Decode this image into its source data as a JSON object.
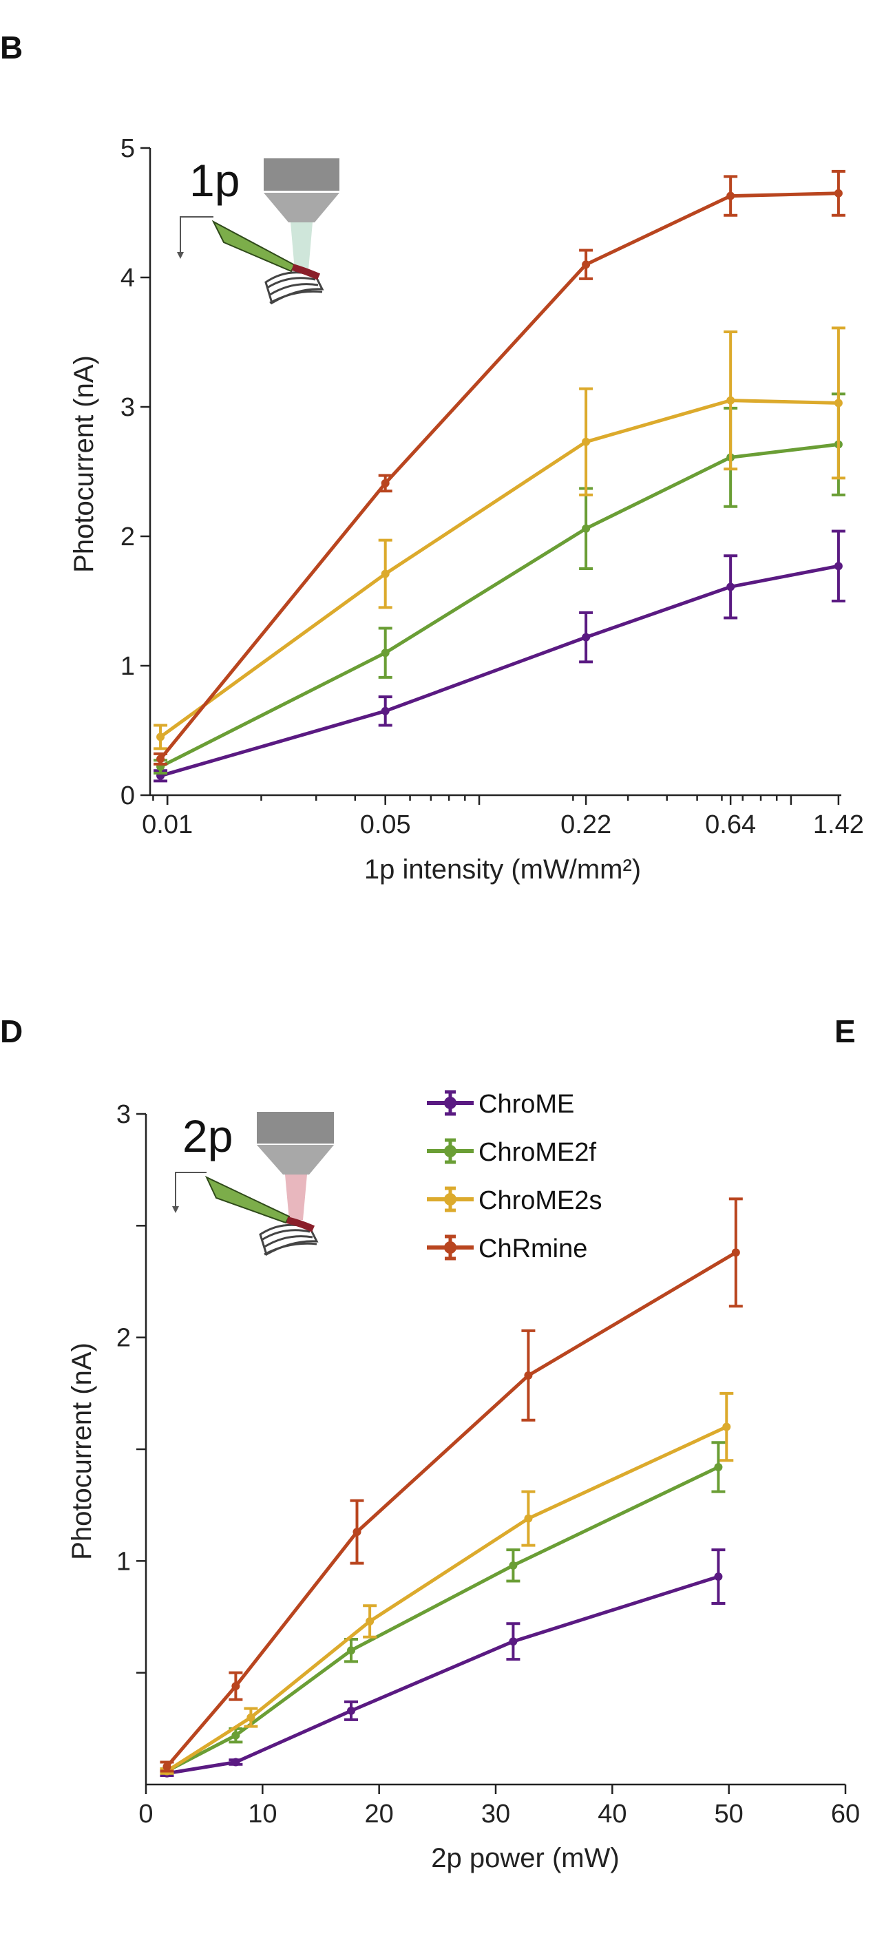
{
  "panels": {
    "b": {
      "letter": "B"
    },
    "d": {
      "letter": "D"
    },
    "e": {
      "letter": "E"
    }
  },
  "colors": {
    "ChroME": "#5a1a82",
    "ChroME2f": "#6a9e35",
    "ChroME2s": "#dcaa2c",
    "ChRmine": "#b9451f"
  },
  "chart_data": [
    {
      "type": "line",
      "panel": "B",
      "inset_label": "1p",
      "xlabel": "1p intensity (mW/mm²)",
      "ylabel": "Photocurrent (nA)",
      "xscale": "log",
      "xlim": [
        0.0088,
        1.45
      ],
      "ylim": [
        0,
        5
      ],
      "xticks": [
        0.01,
        0.05,
        0.22,
        0.64,
        1.42
      ],
      "xtick_labels": [
        "0.01",
        "0.05",
        "0.22",
        "0.64",
        "1.42"
      ],
      "yticks": [
        0,
        1,
        2,
        3,
        4,
        5
      ],
      "ytick_labels": [
        "0",
        "1",
        "2",
        "3",
        "4",
        "5"
      ],
      "grid": false,
      "series": [
        {
          "name": "ChroME",
          "x": [
            0.0095,
            0.05,
            0.22,
            0.64,
            1.42
          ],
          "y": [
            0.15,
            0.65,
            1.22,
            1.61,
            1.77
          ],
          "err": [
            0.04,
            0.11,
            0.19,
            0.24,
            0.27
          ]
        },
        {
          "name": "ChroME2f",
          "x": [
            0.0095,
            0.05,
            0.22,
            0.64,
            1.42
          ],
          "y": [
            0.22,
            1.1,
            2.06,
            2.61,
            2.71
          ],
          "err": [
            0.05,
            0.19,
            0.31,
            0.38,
            0.39
          ]
        },
        {
          "name": "ChroME2s",
          "x": [
            0.0095,
            0.05,
            0.22,
            0.64,
            1.42
          ],
          "y": [
            0.45,
            1.71,
            2.73,
            3.05,
            3.03
          ],
          "err": [
            0.09,
            0.26,
            0.41,
            0.53,
            0.58
          ]
        },
        {
          "name": "ChRmine",
          "x": [
            0.0095,
            0.05,
            0.22,
            0.64,
            1.42
          ],
          "y": [
            0.28,
            2.41,
            4.1,
            4.63,
            4.65
          ],
          "err": [
            0.04,
            0.06,
            0.11,
            0.15,
            0.17
          ]
        }
      ]
    },
    {
      "type": "line",
      "panel": "D",
      "inset_label": "2p",
      "xlabel": "2p power (mW)",
      "ylabel": "Photocurrent (nA)",
      "xlim": [
        0,
        60
      ],
      "ylim": [
        0,
        3
      ],
      "xticks": [
        0,
        10,
        20,
        30,
        40,
        50,
        60
      ],
      "xtick_labels": [
        "0",
        "10",
        "20",
        "30",
        "40",
        "50",
        "60"
      ],
      "yticks": [
        0.5,
        1,
        1.5,
        2,
        2.5,
        3
      ],
      "ytick_labels": [
        "",
        "1",
        "",
        "2",
        "",
        "3"
      ],
      "grid": false,
      "legend_position": "top",
      "series": [
        {
          "name": "ChroME",
          "x": [
            1.8,
            7.7,
            17.6,
            31.5,
            49.1
          ],
          "y": [
            0.05,
            0.1,
            0.33,
            0.64,
            0.93
          ],
          "err": [
            0.01,
            0.01,
            0.04,
            0.08,
            0.12
          ]
        },
        {
          "name": "ChroME2f",
          "x": [
            1.8,
            7.7,
            17.6,
            31.5,
            49.1
          ],
          "y": [
            0.06,
            0.22,
            0.6,
            0.98,
            1.42
          ],
          "err": [
            0.01,
            0.03,
            0.05,
            0.07,
            0.11
          ]
        },
        {
          "name": "ChroME2s",
          "x": [
            1.8,
            9.0,
            19.2,
            32.8,
            49.8
          ],
          "y": [
            0.06,
            0.3,
            0.73,
            1.19,
            1.6
          ],
          "err": [
            0.01,
            0.04,
            0.07,
            0.12,
            0.15
          ]
        },
        {
          "name": "ChRmine",
          "x": [
            1.8,
            7.7,
            18.1,
            32.8,
            50.6
          ],
          "y": [
            0.08,
            0.44,
            1.13,
            1.83,
            2.38
          ],
          "err": [
            0.02,
            0.06,
            0.14,
            0.2,
            0.24
          ]
        }
      ]
    }
  ]
}
